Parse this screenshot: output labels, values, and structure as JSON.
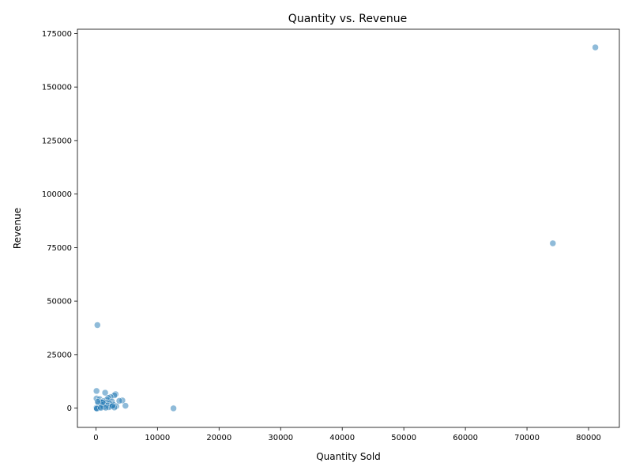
{
  "chart_data": {
    "type": "scatter",
    "title": "Quantity vs. Revenue",
    "xlabel": "Quantity Sold",
    "ylabel": "Revenue",
    "xlim": [
      -3000,
      85000
    ],
    "ylim": [
      -9000,
      177000
    ],
    "xticks": [
      0,
      10000,
      20000,
      30000,
      40000,
      50000,
      60000,
      70000,
      80000
    ],
    "yticks": [
      0,
      25000,
      50000,
      75000,
      100000,
      125000,
      150000,
      175000
    ],
    "grid": false,
    "marker_color": "#1f77b4",
    "marker_alpha": 0.5,
    "points": [
      {
        "x": 81100,
        "y": 168500
      },
      {
        "x": 74200,
        "y": 77000
      },
      {
        "x": 250,
        "y": 38800
      },
      {
        "x": 12600,
        "y": -100
      },
      {
        "x": 100,
        "y": 8000
      },
      {
        "x": 1500,
        "y": 7200
      },
      {
        "x": 3200,
        "y": 6500
      },
      {
        "x": 3000,
        "y": 6000
      },
      {
        "x": 2400,
        "y": 5200
      },
      {
        "x": 2000,
        "y": 4800
      },
      {
        "x": 100,
        "y": 4500
      },
      {
        "x": 600,
        "y": 4200
      },
      {
        "x": 1800,
        "y": 3900
      },
      {
        "x": 4300,
        "y": 3600
      },
      {
        "x": 3800,
        "y": 3400
      },
      {
        "x": 1200,
        "y": 3300
      },
      {
        "x": 2600,
        "y": 3100
      },
      {
        "x": 900,
        "y": 2900
      },
      {
        "x": 1700,
        "y": 2600
      },
      {
        "x": 2200,
        "y": 2400
      },
      {
        "x": 400,
        "y": 2200
      },
      {
        "x": 1400,
        "y": 2000
      },
      {
        "x": 2800,
        "y": 1700
      },
      {
        "x": 1000,
        "y": 1500
      },
      {
        "x": 1900,
        "y": 1300
      },
      {
        "x": 4800,
        "y": 1100
      },
      {
        "x": 3300,
        "y": 900
      },
      {
        "x": 2500,
        "y": 800
      },
      {
        "x": 1300,
        "y": 600
      },
      {
        "x": 700,
        "y": 500
      },
      {
        "x": 2100,
        "y": 400
      },
      {
        "x": 3000,
        "y": 300
      },
      {
        "x": 1600,
        "y": 200
      },
      {
        "x": 50,
        "y": 100
      },
      {
        "x": 100,
        "y": 0
      },
      {
        "x": 150,
        "y": -200
      },
      {
        "x": 800,
        "y": 100
      },
      {
        "x": 2700,
        "y": 1000
      },
      {
        "x": 1100,
        "y": 2700
      },
      {
        "x": 300,
        "y": 3000
      }
    ]
  }
}
